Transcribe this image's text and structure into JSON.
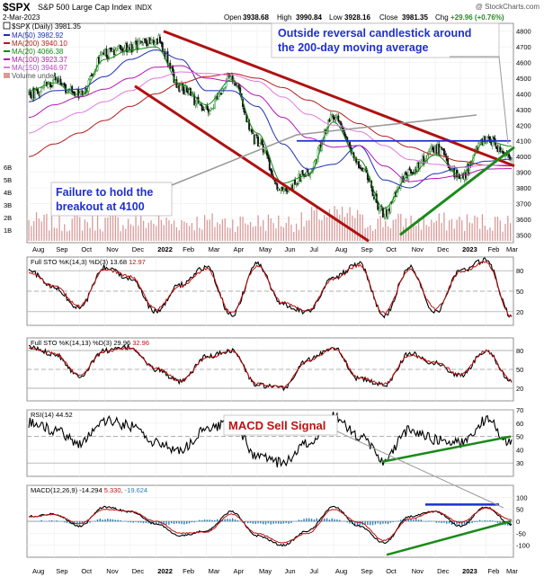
{
  "header": {
    "symbol": "$SPX",
    "name": "S&P 500 Large Cap Index",
    "exchange": "INDX",
    "credit": "@ StockCharts.com",
    "date": "2-Mar-2023",
    "open_label": "Open",
    "open": "3938.68",
    "high_label": "High",
    "high": "3990.84",
    "low_label": "Low",
    "low": "3928.16",
    "close_label": "Close",
    "close": "3981.35",
    "chg_label": "Chg",
    "chg": "+29.96 (+0.76%)"
  },
  "legend": {
    "price": "$SPX (Daily) 3981.35",
    "ma50": "MA(50) 3982.92",
    "ma200": "MA(200) 3940.10",
    "ma20": "MA(20) 4066.38",
    "ma100": "MA(100) 3923.37",
    "ma150": "MA(150) 3946.97",
    "volume": "Volume undef"
  },
  "annotations": {
    "reversal": [
      "Outside reversal candlestick around",
      "the 200-day moving average"
    ],
    "failure": [
      "Failure to hold the",
      "breakout at 4100"
    ],
    "macd_sell": "MACD Sell Signal"
  },
  "sto1_label": {
    "title": "Full STO %K(14,3) %D(3)",
    "k": "13.68",
    "d": "12.97"
  },
  "sto2_label": {
    "title": "Full STO %K(14,13) %D(3)",
    "k": "29.96",
    "d": "32.96"
  },
  "rsi_label": {
    "title": "RSI(14)",
    "value": "44.52"
  },
  "macd_label": {
    "title": "MACD(12,26,9)",
    "macd": "-14.294",
    "signal": "5.330",
    "hist": "-19.624"
  },
  "colors": {
    "up": "#2a8a2a",
    "down": "#111111",
    "ma50": "#1c2fb5",
    "ma200": "#b51c1c",
    "ma20": "#138a13",
    "ma100": "#b515b5",
    "ma150": "#e078e0",
    "volume": "#d99a9a",
    "trend_red": "#b01010",
    "trend_green": "#1a8a1a",
    "level_blue": "#1c2fcc",
    "annot_blue": "#1f2fd0",
    "annot_red": "#c01010"
  },
  "chart_data": [
    {
      "type": "line",
      "title": "$SPX S&P 500 Large Cap Index (Daily)",
      "x": [
        "Aug 2021",
        "Sep",
        "Oct",
        "Nov",
        "Dec",
        "2022",
        "Feb",
        "Mar",
        "Apr",
        "May",
        "Jun",
        "Jul",
        "Aug",
        "Sep",
        "Oct",
        "Nov",
        "Dec",
        "2023",
        "Feb",
        "Mar"
      ],
      "series": [
        {
          "name": "Close",
          "values": [
            4400,
            4480,
            4390,
            4650,
            4700,
            4750,
            4440,
            4300,
            4500,
            4100,
            3780,
            3900,
            4250,
            3950,
            3640,
            3900,
            4050,
            3870,
            4120,
            3981
          ]
        },
        {
          "name": "MA(50)",
          "values": [
            4350,
            4420,
            4430,
            4510,
            4620,
            4680,
            4620,
            4420,
            4420,
            4320,
            4080,
            3920,
            3950,
            4070,
            3850,
            3800,
            3890,
            3930,
            3970,
            3983
          ]
        },
        {
          "name": "MA(200)",
          "values": [
            4000,
            4080,
            4150,
            4230,
            4320,
            4400,
            4470,
            4510,
            4530,
            4500,
            4440,
            4360,
            4290,
            4210,
            4130,
            4060,
            4010,
            3970,
            3945,
            3940
          ]
        },
        {
          "name": "MA(20)",
          "values": [
            4420,
            4470,
            4380,
            4620,
            4680,
            4700,
            4460,
            4330,
            4490,
            4150,
            3830,
            3880,
            4220,
            3980,
            3670,
            3880,
            4010,
            3880,
            4100,
            4066
          ]
        },
        {
          "name": "MA(100)",
          "values": [
            4250,
            4330,
            4380,
            4430,
            4500,
            4570,
            4580,
            4500,
            4480,
            4390,
            4250,
            4120,
            4060,
            4070,
            3940,
            3840,
            3860,
            3880,
            3920,
            3923
          ]
        },
        {
          "name": "MA(150)",
          "values": [
            4150,
            4220,
            4280,
            4350,
            4420,
            4500,
            4540,
            4530,
            4520,
            4480,
            4380,
            4270,
            4200,
            4160,
            4070,
            3980,
            3950,
            3930,
            3945,
            3947
          ]
        }
      ],
      "levels": [
        {
          "name": "Breakout level",
          "value": 4100
        }
      ],
      "ylim": [
        3450,
        4850
      ],
      "yticks": [
        3500,
        3600,
        3700,
        3800,
        3900,
        4000,
        4100,
        4200,
        4300,
        4400,
        4500,
        4600,
        4700,
        4800
      ],
      "volume_ticks": [
        "1B",
        "2B",
        "3B",
        "4B",
        "5B",
        "6B"
      ],
      "xlabel": "",
      "ylabel": ""
    },
    {
      "type": "line",
      "title": "Full STO %K(14,3) %D(3)",
      "series": [
        {
          "name": "%K",
          "values": [
            80,
            55,
            25,
            85,
            70,
            20,
            60,
            85,
            15,
            90,
            30,
            20,
            70,
            90,
            15,
            85,
            20,
            80,
            95,
            13.68
          ]
        },
        {
          "name": "%D",
          "values": [
            78,
            57,
            28,
            82,
            72,
            24,
            58,
            82,
            18,
            87,
            33,
            22,
            68,
            88,
            18,
            82,
            24,
            78,
            92,
            12.97
          ]
        }
      ],
      "ylim": [
        0,
        100
      ],
      "yticks": [
        20,
        50,
        80
      ]
    },
    {
      "type": "line",
      "title": "Full STO %K(14,13) %D(3)",
      "series": [
        {
          "name": "%K",
          "values": [
            85,
            75,
            40,
            80,
            85,
            50,
            30,
            70,
            80,
            25,
            20,
            65,
            85,
            35,
            25,
            75,
            60,
            40,
            80,
            29.96
          ]
        },
        {
          "name": "%D",
          "values": [
            84,
            76,
            42,
            78,
            84,
            52,
            32,
            68,
            79,
            27,
            22,
            63,
            84,
            37,
            27,
            73,
            61,
            42,
            79,
            32.96
          ]
        }
      ],
      "ylim": [
        0,
        100
      ],
      "yticks": [
        20,
        50,
        80
      ]
    },
    {
      "type": "line",
      "title": "RSI(14)",
      "series": [
        {
          "name": "RSI",
          "values": [
            60,
            55,
            45,
            62,
            58,
            45,
            40,
            55,
            60,
            35,
            30,
            45,
            65,
            50,
            32,
            55,
            48,
            45,
            62,
            44.52
          ]
        }
      ],
      "ylim": [
        20,
        70
      ],
      "yticks": [
        30,
        40,
        50,
        60,
        70
      ]
    },
    {
      "type": "line",
      "title": "MACD(12,26,9)",
      "series": [
        {
          "name": "MACD",
          "values": [
            20,
            30,
            -20,
            60,
            40,
            -10,
            -60,
            -40,
            40,
            -60,
            -100,
            -40,
            60,
            -20,
            -90,
            20,
            40,
            -20,
            60,
            -14.294
          ]
        },
        {
          "name": "Signal",
          "values": [
            18,
            28,
            -10,
            50,
            42,
            0,
            -50,
            -45,
            30,
            -50,
            -90,
            -50,
            50,
            -5,
            -80,
            10,
            42,
            -5,
            55,
            5.33
          ]
        },
        {
          "name": "Histogram",
          "values": [
            2,
            2,
            -10,
            10,
            -2,
            -10,
            -10,
            5,
            10,
            -10,
            -10,
            10,
            10,
            -15,
            -10,
            10,
            -2,
            -15,
            5,
            -19.624
          ]
        }
      ],
      "ylim": [
        -150,
        150
      ],
      "yticks": [
        -100,
        -50,
        0,
        50,
        100
      ]
    }
  ]
}
